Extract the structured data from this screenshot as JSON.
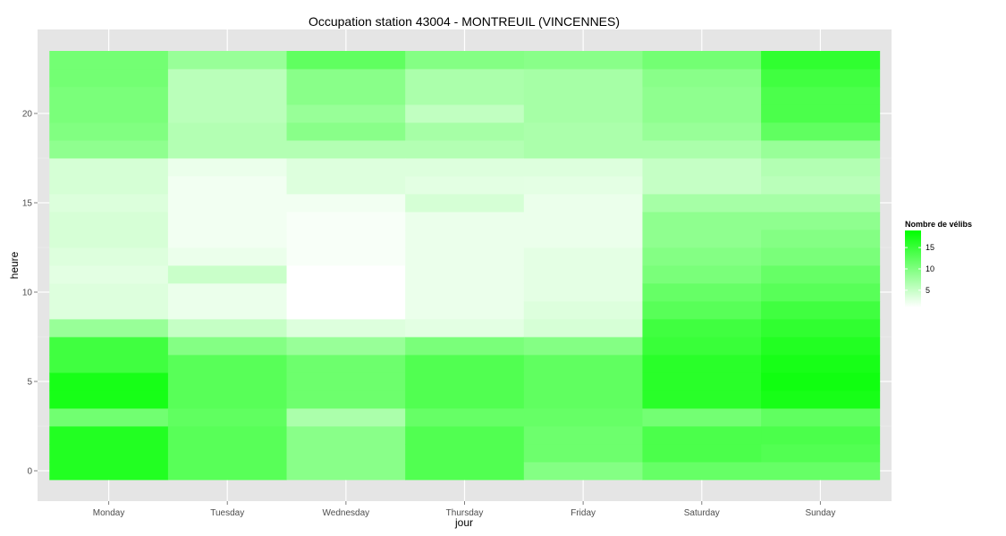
{
  "chart_data": {
    "type": "heatmap",
    "title": "Occupation station 43004 - MONTREUIL (VINCENNES)",
    "xlabel": "jour",
    "ylabel": "heure",
    "x_categories": [
      "Monday",
      "Tuesday",
      "Wednesday",
      "Thursday",
      "Friday",
      "Saturday",
      "Sunday"
    ],
    "y_values": [
      0,
      1,
      2,
      3,
      4,
      5,
      6,
      7,
      8,
      9,
      10,
      11,
      12,
      13,
      14,
      15,
      16,
      17,
      18,
      19,
      20,
      21,
      22,
      23
    ],
    "y_ticks": [
      0,
      5,
      10,
      15,
      20
    ],
    "ylim": [
      -0.5,
      23.5
    ],
    "grid": true,
    "color_low": "#ffffff",
    "color_high": "#00ff00",
    "value_range": [
      1,
      19
    ],
    "legend": {
      "title": "Nombre de vélibs",
      "ticks": [
        5,
        10,
        15
      ],
      "position": "right"
    },
    "series": [
      {
        "name": "Monday",
        "values": [
          16.6,
          16.6,
          16.6,
          11.0,
          17.4,
          17.4,
          14.5,
          14.5,
          8.3,
          3.4,
          3.4,
          3.0,
          3.4,
          3.9,
          3.9,
          3.5,
          4.0,
          4.0,
          8.9,
          9.9,
          10.4,
          10.4,
          10.9,
          10.9
        ]
      },
      {
        "name": "Tuesday",
        "values": [
          12.8,
          12.8,
          12.8,
          12.2,
          12.8,
          12.8,
          12.8,
          9.7,
          5.1,
          2.4,
          2.4,
          4.8,
          2.4,
          1.9,
          1.9,
          1.9,
          1.9,
          2.4,
          6.4,
          6.4,
          5.9,
          5.9,
          5.9,
          8.3
        ]
      },
      {
        "name": "Wednesday",
        "values": [
          9.3,
          9.3,
          9.3,
          6.9,
          11.3,
          11.3,
          11.3,
          8.3,
          3.4,
          1.0,
          1.0,
          1.0,
          1.5,
          1.5,
          1.5,
          1.9,
          3.4,
          3.4,
          6.4,
          9.3,
          8.3,
          9.3,
          9.3,
          12.2
        ]
      },
      {
        "name": "Thursday",
        "values": [
          13.3,
          13.3,
          13.3,
          11.8,
          13.3,
          13.3,
          13.3,
          10.4,
          3.0,
          2.4,
          2.4,
          2.4,
          2.4,
          2.4,
          2.4,
          4.0,
          3.0,
          3.4,
          6.4,
          7.3,
          5.4,
          6.9,
          6.9,
          9.7
        ]
      },
      {
        "name": "Friday",
        "values": [
          9.7,
          11.3,
          11.3,
          11.8,
          12.2,
          12.2,
          12.2,
          9.7,
          3.9,
          3.4,
          2.9,
          2.9,
          2.9,
          2.4,
          2.4,
          2.4,
          2.9,
          3.4,
          6.9,
          6.9,
          7.3,
          7.3,
          7.3,
          9.3
        ]
      },
      {
        "name": "Saturday",
        "values": [
          11.8,
          13.7,
          13.7,
          10.9,
          16.1,
          16.1,
          16.1,
          15.0,
          14.5,
          12.8,
          11.8,
          10.4,
          9.7,
          8.9,
          8.9,
          7.3,
          5.1,
          5.1,
          6.9,
          8.3,
          8.9,
          8.9,
          9.3,
          10.9
        ]
      },
      {
        "name": "Sunday",
        "values": [
          11.8,
          13.2,
          13.7,
          12.2,
          17.4,
          17.9,
          17.4,
          16.6,
          15.6,
          14.5,
          12.8,
          11.8,
          10.4,
          9.7,
          8.9,
          7.3,
          5.9,
          6.4,
          8.3,
          12.2,
          13.7,
          13.7,
          14.5,
          15.6
        ]
      }
    ]
  }
}
